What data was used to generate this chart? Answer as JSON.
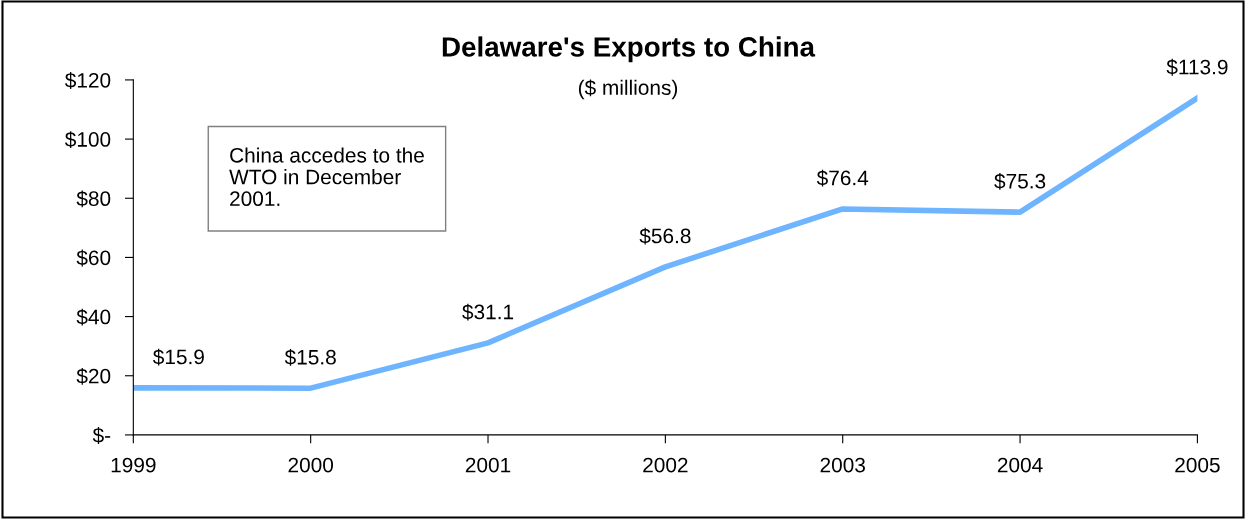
{
  "chart_data": {
    "type": "line",
    "title": "Delaware's Exports to China",
    "subtitle": "($ millions)",
    "categories": [
      "1999",
      "2000",
      "2001",
      "2002",
      "2003",
      "2004",
      "2005"
    ],
    "series": [
      {
        "color": "#6fb4ff",
        "values": [
          15.9,
          15.8,
          31.1,
          56.8,
          76.4,
          75.3,
          113.9
        ],
        "value_labels": [
          "$15.9",
          "$15.8",
          "$31.1",
          "$56.8",
          "$76.4",
          "$75.3",
          "$113.9"
        ]
      }
    ],
    "ylim": [
      0,
      120
    ],
    "yticks": [
      {
        "value": 0,
        "label": "$-"
      },
      {
        "value": 20,
        "label": "$20"
      },
      {
        "value": 40,
        "label": "$40"
      },
      {
        "value": 60,
        "label": "$60"
      },
      {
        "value": 80,
        "label": "$80"
      },
      {
        "value": 100,
        "label": "$100"
      },
      {
        "value": 120,
        "label": "$120"
      }
    ],
    "annotations": [
      "China accedes to the WTO in December 2001."
    ],
    "grid": false,
    "marker": "none",
    "line_style": "solid"
  }
}
